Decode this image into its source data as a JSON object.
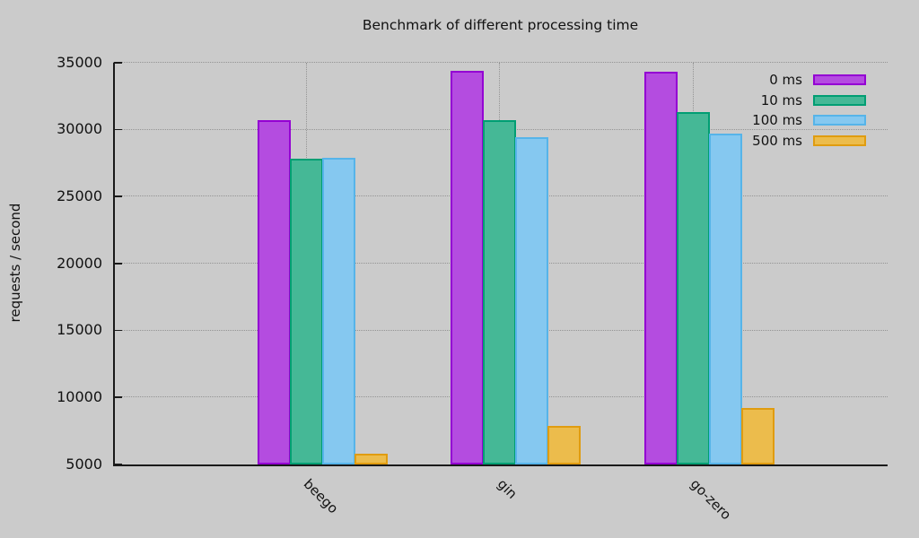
{
  "title": "Benchmark of different processing time",
  "ylabel": "requests / second",
  "background": "#cbcbcb",
  "chart_data": {
    "type": "bar",
    "title": "Benchmark of different processing time",
    "ylabel": "requests / second",
    "xlabel": "",
    "categories": [
      "beego",
      "gin",
      "go-zero"
    ],
    "series": [
      {
        "name": "0 ms",
        "fill": "#b44ce0",
        "border": "#9400d3",
        "values": [
          30700,
          34350,
          34300
        ]
      },
      {
        "name": "10 ms",
        "fill": "#45b896",
        "border": "#009e73",
        "values": [
          27800,
          30700,
          31300
        ]
      },
      {
        "name": "100 ms",
        "fill": "#85c8f0",
        "border": "#56b4e9",
        "values": [
          27900,
          29400,
          29650
        ]
      },
      {
        "name": "500 ms",
        "fill": "#ecbc4c",
        "border": "#e09c10",
        "values": [
          5800,
          7850,
          9200
        ]
      }
    ],
    "ylim": [
      5000,
      35000
    ],
    "ytick_step": 5000,
    "ytick_labels": [
      "5000",
      "10000",
      "15000",
      "20000",
      "25000",
      "30000",
      "35000"
    ],
    "grid": true,
    "grid_style": "dotted",
    "legend_position": "top-right",
    "legend_entries": [
      "0 ms",
      "10 ms",
      "100 ms",
      "500 ms"
    ]
  }
}
